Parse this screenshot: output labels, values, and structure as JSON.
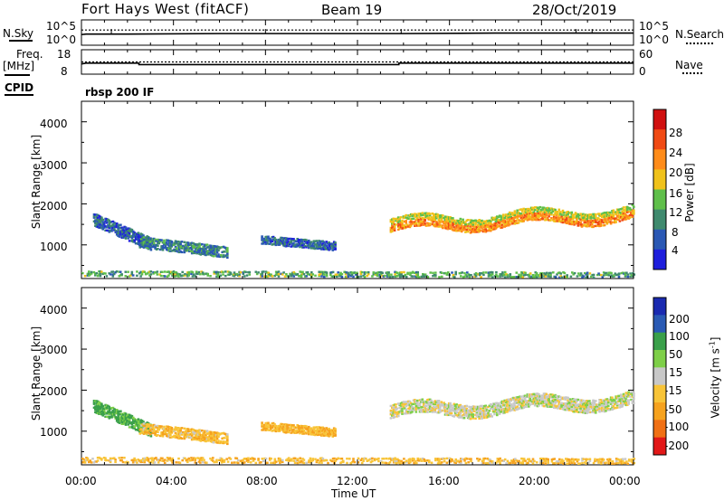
{
  "header": {
    "station": "Fort Hays West (fitACF)",
    "beam": "Beam 19",
    "date": "28/Oct/2019"
  },
  "strip1": {
    "left_label": "N.Sky",
    "left_tick_hi": "10^5",
    "left_tick_lo": "10^0",
    "right_label": "N.Search",
    "right_tick_hi": "10^5",
    "right_tick_lo": "10^0"
  },
  "strip2": {
    "left_label_1": "Freq.",
    "left_label_2": "[MHz]",
    "left_tick_hi": "18",
    "left_tick_lo": "8",
    "right_label": "Nave",
    "right_tick_hi": "60",
    "right_tick_lo": "0"
  },
  "cpid": {
    "label": "CPID",
    "value": "rbsp 200 IF"
  },
  "power_panel": {
    "ylabel": "Slant Range [km]",
    "yticks": [
      "4000",
      "3000",
      "2000",
      "1000"
    ],
    "colorbar_label": "Power [dB]",
    "colorbar_ticks": [
      "28",
      "24",
      "20",
      "16",
      "12",
      "8",
      "4"
    ]
  },
  "velocity_panel": {
    "ylabel": "Slant Range [km]",
    "yticks": [
      "4000",
      "3000",
      "2000",
      "1000"
    ],
    "colorbar_label": "Velocity [m s",
    "colorbar_label_sup": "-1",
    "colorbar_label_end": "]",
    "colorbar_ticks": [
      "200",
      "100",
      "50",
      "15",
      "-15",
      "-50",
      "-100",
      "-200"
    ]
  },
  "x_axis": {
    "ticks": [
      "00:00",
      "04:00",
      "08:00",
      "12:00",
      "16:00",
      "20:00",
      "00:00"
    ],
    "label": "Time UT"
  },
  "colors": {
    "power_scale": [
      "#1e1edc",
      "#2a58b4",
      "#3f8a6e",
      "#5fbf4a",
      "#f0c21b",
      "#ff8c1a",
      "#f04a14",
      "#d01010"
    ],
    "velocity_scale": [
      "#e21818",
      "#f07014",
      "#f6a21e",
      "#f8c438",
      "#c8c8c8",
      "#7ecf48",
      "#3aa04a",
      "#2a5ab4",
      "#1a2ab0"
    ]
  },
  "chart_data": [
    {
      "type": "line",
      "title": "N.Sky / N.Search",
      "x_unit": "hours UT",
      "series": [
        {
          "name": "N.Sky",
          "x": [
            0,
            0.2,
            2,
            6,
            10,
            14,
            18,
            22,
            24
          ],
          "y": [
            2.1,
            2.2,
            2.2,
            2.3,
            2.3,
            2.3,
            2.4,
            2.4,
            2.4
          ]
        },
        {
          "name": "N.Search",
          "x": [
            0,
            4,
            8,
            12,
            16,
            20,
            24
          ],
          "y": [
            3.0,
            3.0,
            3.0,
            3.0,
            3.0,
            3.0,
            3.0
          ]
        }
      ]
    },
    {
      "type": "line",
      "title": "Freq. / Nave",
      "x_unit": "hours UT",
      "series": [
        {
          "name": "Freq.",
          "x": [
            0,
            0.2,
            2.5,
            2.5,
            13.8,
            13.8,
            24
          ],
          "y": [
            12.2,
            12.5,
            12.5,
            11.9,
            11.9,
            12.5,
            12.5
          ]
        },
        {
          "name": "Nave",
          "x": [
            0,
            24
          ],
          "y": [
            30,
            30
          ]
        }
      ]
    },
    {
      "type": "heatmap",
      "title": "Power [dB]",
      "x_unit": "hours UT",
      "y_unit": "km",
      "xlim": [
        0,
        24
      ],
      "ylim": [
        180,
        4500
      ],
      "regions": [
        {
          "t0": 0.5,
          "t1": 3.0,
          "r0": 1650,
          "r1": 1050,
          "thickness": 320,
          "level": 6
        },
        {
          "t0": 2.5,
          "t1": 6.3,
          "r0": 1100,
          "r1": 850,
          "thickness": 280,
          "level": 9
        },
        {
          "t0": 7.8,
          "t1": 11.0,
          "r0": 1150,
          "r1": 1000,
          "thickness": 220,
          "level": 7
        },
        {
          "t0": 13.4,
          "t1": 24.0,
          "r0": 1500,
          "r1": 1800,
          "thickness": 330,
          "level": 18
        },
        {
          "t0": 0.0,
          "t1": 24.0,
          "r0": 330,
          "r1": 300,
          "thickness": 140,
          "level": 12
        }
      ]
    },
    {
      "type": "heatmap",
      "title": "Velocity",
      "x_unit": "hours UT",
      "y_unit": "km",
      "xlim": [
        0,
        24
      ],
      "ylim": [
        180,
        4500
      ],
      "regions": [
        {
          "t0": 0.5,
          "t1": 3.0,
          "r0": 1650,
          "r1": 1050,
          "thickness": 320,
          "velocity": 60
        },
        {
          "t0": 2.5,
          "t1": 6.3,
          "r0": 1100,
          "r1": 850,
          "thickness": 280,
          "velocity": -40
        },
        {
          "t0": 7.8,
          "t1": 11.0,
          "r0": 1150,
          "r1": 1000,
          "thickness": 220,
          "velocity": -50
        },
        {
          "t0": 13.4,
          "t1": 24.0,
          "r0": 1500,
          "r1": 1800,
          "thickness": 330,
          "velocity": 0
        },
        {
          "t0": 0.0,
          "t1": 24.0,
          "r0": 330,
          "r1": 300,
          "thickness": 140,
          "velocity": -40
        }
      ]
    }
  ]
}
